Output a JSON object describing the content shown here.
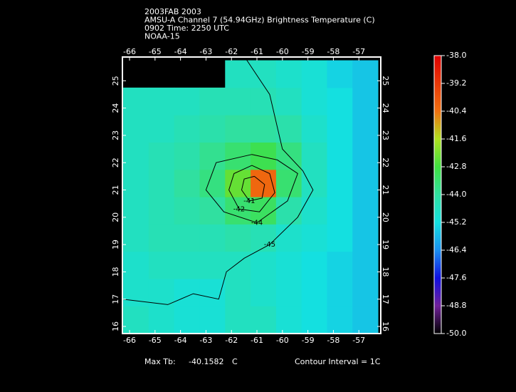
{
  "chart_data": {
    "type": "heatmap",
    "title_lines": [
      "2003FAB 2003",
      "AMSU-A Channel 7 (54.94GHz) Brightness Temperature (C)",
      "0902 Time: 2250 UTC",
      "NOAA-15"
    ],
    "x": [
      -65.75,
      -64.75,
      -63.75,
      -62.75,
      -61.75,
      -60.75,
      -59.75,
      -58.75,
      -57.75,
      -56.75
    ],
    "y": [
      16.25,
      17.25,
      18.25,
      19.25,
      20.25,
      21.25,
      22.25,
      23.25,
      24.25,
      25.25
    ],
    "z": [
      [
        -44.6,
        -44.8,
        -45.0,
        -45.0,
        -44.6,
        -44.6,
        -45.0,
        -45.2,
        -45.4,
        -45.6
      ],
      [
        -44.8,
        -44.8,
        -45.0,
        -45.0,
        -44.6,
        -44.8,
        -45.0,
        -45.2,
        -45.4,
        -45.6
      ],
      [
        -44.8,
        -44.6,
        -44.6,
        -44.6,
        -44.6,
        -44.8,
        -45.0,
        -45.2,
        -45.4,
        -45.6
      ],
      [
        -44.6,
        -44.4,
        -44.4,
        -44.4,
        -44.2,
        -44.4,
        -44.8,
        -45.0,
        -45.2,
        -45.6
      ],
      [
        -44.6,
        -44.4,
        -44.2,
        -44.0,
        -43.4,
        -43.2,
        -44.2,
        -44.8,
        -45.2,
        -45.6
      ],
      [
        -44.6,
        -44.4,
        -44.0,
        -43.6,
        -42.4,
        -40.2,
        -43.4,
        -44.6,
        -45.2,
        -45.6
      ],
      [
        -44.6,
        -44.4,
        -44.2,
        -43.8,
        -43.4,
        -43.0,
        -43.6,
        -44.6,
        -45.2,
        -45.6
      ],
      [
        -44.6,
        -44.6,
        -44.4,
        -44.2,
        -44.0,
        -44.0,
        -44.2,
        -44.8,
        -45.2,
        -45.6
      ],
      [
        -44.6,
        -44.6,
        -44.6,
        -44.4,
        -44.4,
        -44.4,
        -44.6,
        -45.0,
        -45.2,
        -45.6
      ],
      [
        null,
        null,
        null,
        null,
        -44.6,
        -44.6,
        -44.8,
        -45.0,
        -45.4,
        -45.6
      ]
    ],
    "xlim": [
      -66.28,
      -56.14
    ],
    "ylim": [
      15.74,
      25.87
    ],
    "xticks": [
      -66,
      -65,
      -64,
      -63,
      -62,
      -61,
      -60,
      -59,
      -58,
      -57
    ],
    "yticks": [
      16,
      17,
      18,
      19,
      20,
      21,
      22,
      23,
      24,
      25
    ],
    "clim": [
      -50,
      -38
    ],
    "cticks": [
      {
        "value": -38,
        "label": "-38.0"
      },
      -39.2,
      -40.4,
      -41.6,
      -42.8,
      {
        "value": -44,
        "label": "-44.0"
      },
      -45.2,
      -46.4,
      -47.6,
      -48.8,
      {
        "value": -50,
        "label": "-50.0"
      }
    ],
    "colorscale": {
      "values": [
        -50,
        -48.8,
        -47.6,
        -46.4,
        -45.2,
        -44,
        -42.8,
        -41.6,
        -40.4,
        -38
      ],
      "colors": [
        "#000000",
        "#70209a",
        "#1010e0",
        "#1a90f0",
        "#14e0e0",
        "#30e0a0",
        "#40e040",
        "#b0e020",
        "#f07010",
        "#e00000"
      ]
    },
    "contours": [
      {
        "level": -45,
        "lon": [
          -61.5,
          -60.5,
          -60.0,
          -59.2,
          -58.8,
          -59.4,
          -60.5,
          -61.5,
          -62.2,
          -62.5,
          -63.5,
          -64.5,
          -66.3
        ],
        "lat": [
          25.9,
          24.5,
          22.5,
          21.7,
          21.0,
          20.0,
          19.0,
          18.5,
          18.0,
          17.0,
          17.2,
          16.8,
          17.0
        ]
      },
      {
        "level": -44,
        "lon": [
          -61.2,
          -60.2,
          -59.4,
          -59.8,
          -61.0,
          -62.3,
          -63.0,
          -62.6,
          -61.2
        ],
        "lat": [
          22.3,
          22.1,
          21.6,
          20.6,
          19.8,
          20.2,
          21.0,
          22.0,
          22.3
        ]
      },
      {
        "level": -42,
        "lon": [
          -61.2,
          -60.5,
          -60.3,
          -60.9,
          -61.7,
          -62.1,
          -61.9,
          -61.2
        ],
        "lat": [
          21.9,
          21.6,
          20.9,
          20.2,
          20.3,
          21.0,
          21.6,
          21.9
        ]
      },
      {
        "level": -41,
        "lon": [
          -61.1,
          -60.7,
          -60.8,
          -61.3,
          -61.6,
          -61.5,
          -61.1
        ],
        "lat": [
          21.5,
          21.2,
          20.7,
          20.6,
          21.0,
          21.4,
          21.5
        ]
      }
    ],
    "footer": {
      "max_label": "Max Tb:",
      "max_value": "-40.1582",
      "max_unit": "C",
      "interval": "Contour Interval = 1C"
    }
  }
}
